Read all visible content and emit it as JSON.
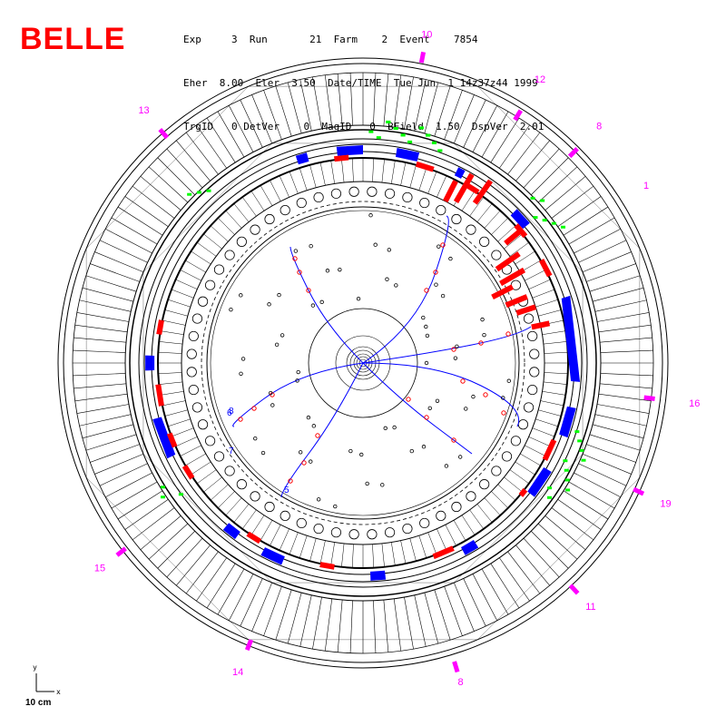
{
  "logo": "BELLE",
  "header_lines": [
    "Exp     3  Run       21  Farm    2  Event    7854",
    "Eher  8.00  Eler  3.50  Date/TIME  Tue Jun  1 14z37z44 1999",
    "TrgID   0 DetVer    0  MagID   0  BField  1.50  DspVer  2.01"
  ],
  "scale": {
    "x_label": "x",
    "y_label": "y",
    "length_label": "10 cm"
  },
  "klm_labels": [
    {
      "text": "8",
      "angle": 287
    },
    {
      "text": "10",
      "angle": 79
    },
    {
      "text": "12",
      "angle": 58
    },
    {
      "text": "13",
      "angle": 131
    },
    {
      "text": "8",
      "angle": 45
    },
    {
      "text": "1",
      "angle": 32
    },
    {
      "text": "16",
      "angle": -7
    },
    {
      "text": "19",
      "angle": -25
    },
    {
      "text": "11",
      "angle": -47
    },
    {
      "text": "15",
      "angle": 218
    },
    {
      "text": "14",
      "angle": 248
    }
  ],
  "track_labels": [
    "6",
    "7",
    "8",
    "5"
  ],
  "colors": {
    "logo": "#ff0000",
    "track": "#0000ff",
    "hit_red": "#ff0000",
    "ecl_blue": "#0000ff",
    "klm_green": "#00ff00",
    "klm_magenta": "#ff00ff",
    "frame": "#000000"
  }
}
